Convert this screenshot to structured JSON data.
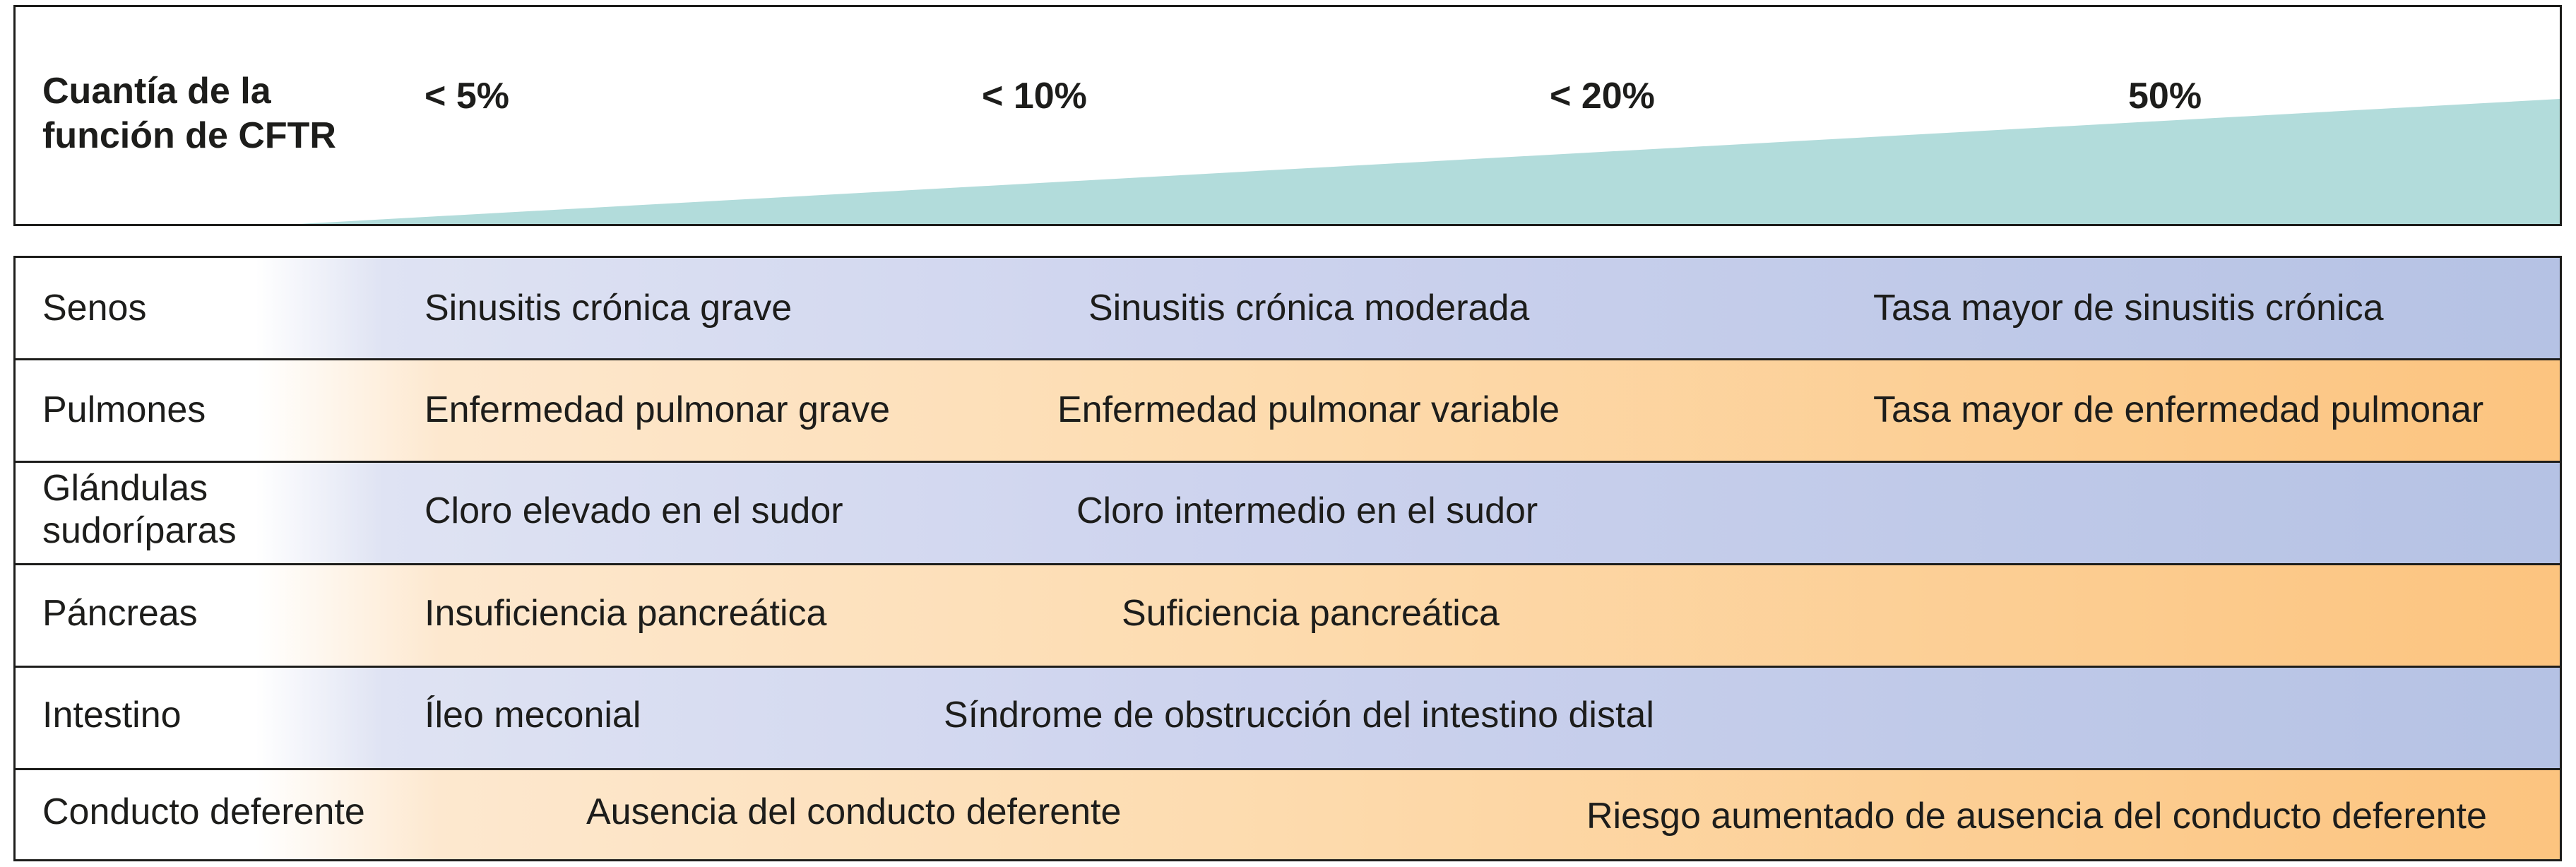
{
  "header": {
    "title": "Cuantía de la\nfunción de CFTR",
    "title_line1": "Cuantía de la",
    "title_line2": "función de CFTR",
    "levels": [
      "< 5%",
      "< 10%",
      "< 20%",
      "50%"
    ],
    "wedge_color": "#b2dcdb"
  },
  "rows": [
    {
      "organ": "Senos",
      "cells": [
        "Sinusitis crónica grave",
        "Sinusitis crónica moderada",
        "Tasa mayor de sinusitis crónica"
      ],
      "color": "blue"
    },
    {
      "organ": "Pulmones",
      "cells": [
        "Enfermedad pulmonar grave",
        "Enfermedad pulmonar variable",
        "Tasa mayor de enfermedad pulmonar"
      ],
      "color": "orange"
    },
    {
      "organ_line1": "Glándulas",
      "organ_line2": "sudoríparas",
      "cells": [
        "Cloro elevado en el sudor",
        "Cloro intermedio en el sudor"
      ],
      "color": "blue"
    },
    {
      "organ": "Páncreas",
      "cells": [
        "Insuficiencia pancreática",
        "Suficiencia pancreática"
      ],
      "color": "orange"
    },
    {
      "organ": "Intestino",
      "cells": [
        "Íleo meconial",
        "Síndrome de obstrucción del intestino distal"
      ],
      "color": "blue"
    },
    {
      "organ": "Conducto deferente",
      "cells": [
        "Ausencia del conducto deferente",
        "Riesgo aumentado de ausencia del conducto deferente"
      ],
      "color": "orange"
    }
  ]
}
